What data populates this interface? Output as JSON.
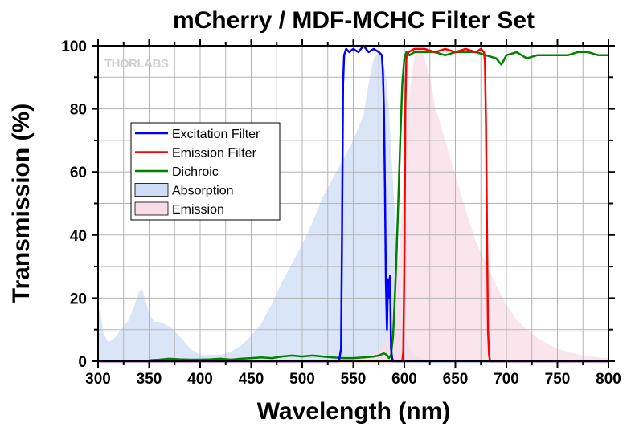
{
  "chart_data": {
    "type": "line",
    "title": "mCherry / MDF-MCHC Filter Set",
    "xlabel": "Wavelength (nm)",
    "ylabel": "Transmission (%)",
    "xlim": [
      300,
      800
    ],
    "ylim": [
      0,
      100
    ],
    "xticks": [
      300,
      350,
      400,
      450,
      500,
      550,
      600,
      650,
      700,
      750,
      800
    ],
    "yticks": [
      0,
      20,
      40,
      60,
      80,
      100
    ],
    "grid": true,
    "legend_position": "upper-left",
    "logo": "THORLABS",
    "series": [
      {
        "name": "Excitation Filter",
        "color": "#0000ff",
        "kind": "line",
        "x": [
          300,
          536,
          538,
          539,
          540,
          541,
          543,
          546,
          550,
          555,
          560,
          565,
          570,
          575,
          578,
          579,
          580,
          581,
          582,
          583,
          584,
          585,
          586,
          587,
          588,
          589,
          590,
          800
        ],
        "y": [
          0,
          0,
          4,
          40,
          88,
          97,
          99,
          98,
          99,
          98,
          100,
          98,
          99,
          98,
          97,
          92,
          80,
          55,
          25,
          10,
          26,
          20,
          27,
          4,
          1,
          0,
          0,
          0
        ]
      },
      {
        "name": "Emission Filter",
        "color": "#ff0000",
        "kind": "line",
        "x": [
          300,
          598,
          599,
          600,
          601,
          602,
          604,
          610,
          620,
          630,
          640,
          650,
          660,
          670,
          675,
          678,
          679,
          680,
          681,
          682,
          683,
          684,
          800
        ],
        "y": [
          0,
          0,
          3,
          30,
          80,
          96,
          98,
          99,
          99,
          98,
          99,
          98,
          99,
          98,
          99,
          98,
          95,
          75,
          40,
          10,
          2,
          0,
          0
        ]
      },
      {
        "name": "Dichroic",
        "color": "#008000",
        "kind": "line",
        "x": [
          350,
          360,
          370,
          380,
          390,
          400,
          410,
          420,
          430,
          440,
          450,
          460,
          470,
          480,
          490,
          500,
          510,
          520,
          530,
          540,
          550,
          560,
          570,
          575,
          580,
          583,
          585,
          587,
          589,
          590,
          592,
          594,
          596,
          598,
          600,
          602,
          605,
          610,
          620,
          630,
          640,
          650,
          660,
          670,
          680,
          690,
          695,
          700,
          710,
          720,
          730,
          740,
          750,
          760,
          770,
          780,
          790,
          800
        ],
        "y": [
          0.3,
          0.5,
          0.8,
          0.6,
          0.5,
          0.5,
          0.6,
          0.8,
          0.5,
          0.8,
          1.0,
          1.2,
          1.0,
          1.5,
          1.8,
          1.5,
          1.8,
          1.5,
          1.2,
          1.0,
          1.0,
          1.2,
          1.5,
          1.8,
          2.5,
          2.0,
          1.0,
          2.0,
          8,
          15,
          30,
          50,
          70,
          88,
          96,
          98,
          97,
          98,
          98,
          98,
          97,
          98,
          98,
          98,
          97,
          96,
          94,
          97,
          98,
          96,
          97,
          97,
          97,
          97,
          98,
          98,
          97,
          97
        ]
      },
      {
        "name": "Absorption",
        "color": "#cfdcf5",
        "kind": "area",
        "x": [
          300,
          302,
          305,
          310,
          315,
          320,
          330,
          335,
          340,
          343,
          346,
          350,
          355,
          360,
          370,
          380,
          390,
          400,
          410,
          420,
          430,
          440,
          450,
          460,
          470,
          480,
          490,
          500,
          510,
          520,
          530,
          540,
          550,
          560,
          565,
          570,
          575,
          578,
          582,
          585,
          590,
          595,
          600,
          605,
          610,
          615,
          620,
          625,
          630
        ],
        "y": [
          15,
          17,
          9,
          6,
          7,
          9,
          13,
          17,
          22,
          23,
          20,
          15,
          12.5,
          12.5,
          11,
          8,
          4,
          2,
          2,
          2,
          3,
          5,
          8,
          12,
          18,
          25,
          31,
          37,
          44,
          52,
          58,
          64,
          70,
          78,
          88,
          96,
          98,
          97,
          90,
          80,
          50,
          25,
          10,
          4,
          2,
          1,
          0.5,
          0.2,
          0
        ]
      },
      {
        "name": "Emission",
        "color": "#f9dce5",
        "kind": "area",
        "x": [
          540,
          550,
          560,
          570,
          580,
          585,
          590,
          595,
          600,
          605,
          610,
          615,
          620,
          625,
          630,
          640,
          650,
          660,
          670,
          680,
          690,
          700,
          710,
          720,
          730,
          740,
          750,
          760,
          770,
          780,
          790,
          800
        ],
        "y": [
          0,
          0.5,
          1,
          2,
          5,
          9,
          18,
          35,
          62,
          85,
          97,
          100,
          96,
          90,
          81,
          70,
          59,
          48,
          38,
          31,
          24,
          18,
          13,
          10,
          7.5,
          5.5,
          4,
          3,
          2.2,
          1.6,
          1.2,
          1
        ]
      }
    ]
  }
}
